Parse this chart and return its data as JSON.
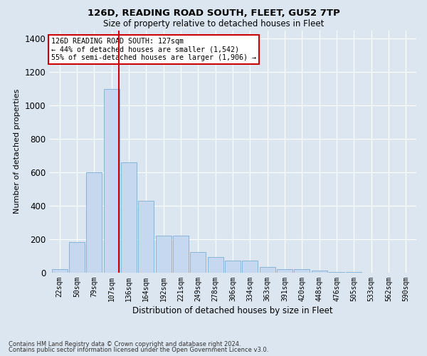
{
  "title1": "126D, READING ROAD SOUTH, FLEET, GU52 7TP",
  "title2": "Size of property relative to detached houses in Fleet",
  "xlabel": "Distribution of detached houses by size in Fleet",
  "ylabel": "Number of detached properties",
  "bar_labels": [
    "22sqm",
    "50sqm",
    "79sqm",
    "107sqm",
    "136sqm",
    "164sqm",
    "192sqm",
    "221sqm",
    "249sqm",
    "278sqm",
    "306sqm",
    "334sqm",
    "363sqm",
    "391sqm",
    "420sqm",
    "448sqm",
    "476sqm",
    "505sqm",
    "533sqm",
    "562sqm",
    "590sqm"
  ],
  "bar_values": [
    20,
    180,
    600,
    1100,
    660,
    430,
    220,
    220,
    120,
    90,
    70,
    70,
    30,
    20,
    20,
    10,
    3,
    3,
    0,
    0,
    0
  ],
  "bar_color": "#c5d8f0",
  "bar_edge_color": "#7bafd4",
  "vline_x_index": 3.42,
  "vline_color": "#cc0000",
  "annotation_text": "126D READING ROAD SOUTH: 127sqm\n← 44% of detached houses are smaller (1,542)\n55% of semi-detached houses are larger (1,906) →",
  "annotation_box_color": "#ffffff",
  "annotation_box_edgecolor": "#cc0000",
  "bg_color": "#dce6f0",
  "plot_bg_color": "#dce6f0",
  "footer1": "Contains HM Land Registry data © Crown copyright and database right 2024.",
  "footer2": "Contains public sector information licensed under the Open Government Licence v3.0.",
  "ylim": [
    0,
    1450
  ],
  "yticks": [
    0,
    200,
    400,
    600,
    800,
    1000,
    1200,
    1400
  ]
}
